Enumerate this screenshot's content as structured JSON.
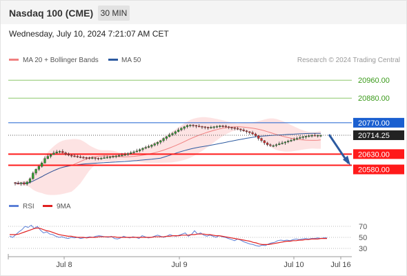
{
  "header": {
    "instrument": "Nasdaq 100 (CME)",
    "timeframe": "30 MIN",
    "datetime": "Wednesday, July 10, 2024 7:21:07 AM CET"
  },
  "legend": {
    "ma20_label": "MA 20 + Bollinger Bands",
    "ma50_label": "MA 50",
    "credit": "Research © 2024 Trading Central"
  },
  "rsi_legend": {
    "rsi_label": "RSI",
    "ma_label": "9MA"
  },
  "colors": {
    "price_up": "#2f9e2f",
    "price_down": "#d32f2f",
    "ma20": "#f08080",
    "bollinger_fill": "#fde3e3",
    "ma50": "#2c5aa0",
    "target_green": "#8cc76a",
    "pivot_blue": "#1a5fd0",
    "support_red": "#ff1a1a",
    "rsi": "#5b7fd6",
    "rsi_ma": "#e02020",
    "arrow": "#2c5aa0"
  },
  "chart_data": [
    {
      "type": "candlestick",
      "title": "Nasdaq 100 (CME)",
      "interval": "30 MIN",
      "x_ticks": [
        "Jul 8",
        "Jul 9",
        "Jul 10",
        "Jul 16"
      ],
      "ylim": [
        20480,
        21010
      ],
      "last_price": 20714.25,
      "levels": [
        {
          "value": 20960.0,
          "label": "20960.00",
          "kind": "target"
        },
        {
          "value": 20880.0,
          "label": "20880.00",
          "kind": "target"
        },
        {
          "value": 20770.0,
          "label": "20770.00",
          "kind": "pivot"
        },
        {
          "value": 20630.0,
          "label": "20630.00",
          "kind": "support"
        },
        {
          "value": 20580.0,
          "label": "20580.00",
          "kind": "support"
        }
      ],
      "last_price_label": "20714.25",
      "series": [
        {
          "name": "Price",
          "values": [
            20500,
            20498,
            20502,
            20496,
            20505,
            20520,
            20545,
            20562,
            20575,
            20590,
            20610,
            20620,
            20628,
            20635,
            20640,
            20642,
            20636,
            20630,
            20625,
            20622,
            20620,
            20618,
            20616,
            20615,
            20614,
            20613,
            20614,
            20612,
            20611,
            20612,
            20614,
            20616,
            20618,
            20620,
            20622,
            20624,
            20625,
            20628,
            20632,
            20636,
            20640,
            20644,
            20650,
            20656,
            20660,
            20664,
            20670,
            20676,
            20683,
            20690,
            20700,
            20708,
            20716,
            20722,
            20730,
            20738,
            20745,
            20752,
            20758,
            20760,
            20758,
            20755,
            20754,
            20752,
            20750,
            20748,
            20750,
            20752,
            20754,
            20756,
            20755,
            20752,
            20750,
            20748,
            20745,
            20742,
            20738,
            20734,
            20730,
            20726,
            20720,
            20712,
            20700,
            20690,
            20680,
            20672,
            20668,
            20668,
            20672,
            20676,
            20680,
            20684,
            20688,
            20692,
            20696,
            20700,
            20704,
            20708,
            20710,
            20712,
            20714,
            20713,
            20714,
            20714
          ]
        },
        {
          "name": "MA 20 + Bollinger Bands"
        },
        {
          "name": "MA 50"
        }
      ]
    },
    {
      "type": "line",
      "y_ticks": [
        70,
        50,
        30
      ],
      "ylim": [
        20,
        85
      ],
      "series": [
        {
          "name": "RSI",
          "values": [
            52,
            50,
            55,
            60,
            64,
            70,
            68,
            72,
            66,
            70,
            63,
            58,
            60,
            56,
            55,
            52,
            50,
            51,
            49,
            48,
            50,
            49,
            50,
            48,
            49,
            50,
            51,
            50,
            52,
            53,
            52,
            51,
            50,
            52,
            48,
            47,
            49,
            52,
            50,
            49,
            51,
            50,
            48,
            53,
            51,
            49,
            50,
            52,
            54,
            52,
            50,
            52,
            55,
            53,
            52,
            54,
            56,
            58,
            52,
            55,
            62,
            56,
            58,
            54,
            52,
            54,
            52,
            50,
            53,
            51,
            50,
            48,
            46,
            44,
            47,
            45,
            42,
            40,
            38,
            37,
            35,
            34,
            36,
            35,
            38,
            40,
            41,
            44,
            45,
            44,
            45,
            44,
            46,
            47,
            46,
            47,
            48,
            47,
            48,
            48,
            49,
            48,
            49,
            49
          ]
        },
        {
          "name": "9MA",
          "values": [
            55,
            55,
            55,
            56,
            58,
            60,
            62,
            64,
            66,
            67,
            66,
            64,
            62,
            61,
            59,
            57,
            55,
            54,
            53,
            52,
            52,
            51,
            50,
            50,
            50,
            49,
            50,
            50,
            50,
            51,
            51,
            51,
            51,
            51,
            51,
            50,
            50,
            50,
            50,
            50,
            50,
            50,
            50,
            50,
            50,
            50,
            50,
            51,
            51,
            51,
            51,
            52,
            52,
            53,
            53,
            53,
            54,
            54,
            54,
            55,
            55,
            56,
            56,
            56,
            55,
            55,
            54,
            53,
            53,
            52,
            51,
            50,
            49,
            48,
            47,
            46,
            45,
            44,
            43,
            41,
            40,
            38,
            37,
            37,
            37,
            38,
            39,
            40,
            41,
            42,
            43,
            43,
            44,
            44,
            45,
            45,
            46,
            46,
            47,
            47,
            47,
            48,
            48,
            48
          ]
        }
      ]
    }
  ]
}
